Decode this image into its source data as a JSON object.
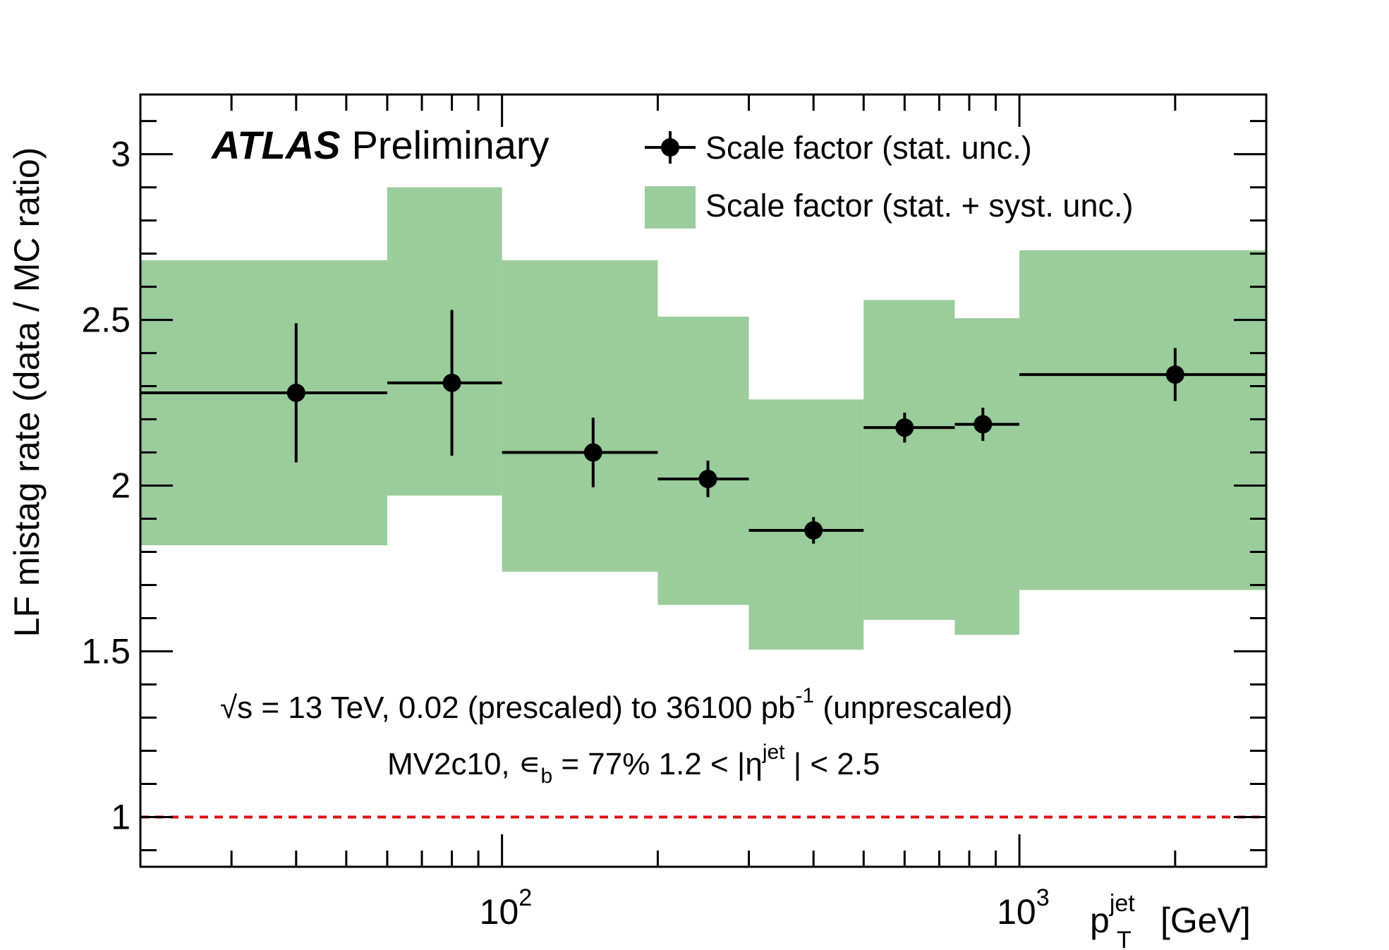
{
  "chart_data": {
    "type": "scatter",
    "experiment_label": "ATLAS",
    "experiment_status": "Preliminary",
    "ylabel": "LF mistag rate (data / MC ratio)",
    "xlabel_main": "p",
    "xlabel_sub": "T",
    "xlabel_sup": "jet",
    "xlabel_unit": "[GeV]",
    "x_scale": "log",
    "xlim": [
      20,
      3000
    ],
    "ylim": [
      0.85,
      3.18
    ],
    "x_tick_labels": [
      {
        "value": 100,
        "base": "10",
        "exp": "2"
      },
      {
        "value": 1000,
        "base": "10",
        "exp": "3"
      }
    ],
    "y_tick_labels": [
      {
        "value": 1,
        "label": "1"
      },
      {
        "value": 1.5,
        "label": "1.5"
      },
      {
        "value": 2,
        "label": "2"
      },
      {
        "value": 2.5,
        "label": "2.5"
      },
      {
        "value": 3,
        "label": "3"
      }
    ],
    "reference_line": {
      "y": 1,
      "color": "#dd1111"
    },
    "legend": {
      "position": "top-right",
      "stat_label": "Scale factor (stat. unc.)",
      "syst_label": "Scale factor  (stat. + syst. unc.)"
    },
    "annotations": {
      "line1_sqrt": "√s",
      "line1_a": " = 13 TeV, 0.02 (prescaled) to 36100 pb",
      "line1_sup": "-1",
      "line1_b": " (unprescaled)",
      "line2_a": "MV2c10, ",
      "line2_eps": "∊",
      "line2_eps_sub": "b",
      "line2_b": " = 77%    1.2 < |η",
      "line2_sup": "jet",
      "line2_c": " | < 2.5"
    },
    "colors": {
      "band": "#9bcc9b",
      "points": "#000000",
      "reference": "#dd1111"
    },
    "series": [
      {
        "name": "Scale factor (stat. unc.)",
        "points": [
          {
            "x": 40,
            "xlo": 20,
            "xhi": 60,
            "y": 2.28,
            "stat": 0.21,
            "syst_lo": 1.82,
            "syst_hi": 2.68
          },
          {
            "x": 80,
            "xlo": 60,
            "xhi": 100,
            "y": 2.31,
            "stat": 0.22,
            "syst_lo": 1.97,
            "syst_hi": 2.9
          },
          {
            "x": 150,
            "xlo": 100,
            "xhi": 200,
            "y": 2.1,
            "stat": 0.105,
            "syst_lo": 1.74,
            "syst_hi": 2.68
          },
          {
            "x": 250,
            "xlo": 200,
            "xhi": 300,
            "y": 2.02,
            "stat": 0.055,
            "syst_lo": 1.64,
            "syst_hi": 2.51
          },
          {
            "x": 400,
            "xlo": 300,
            "xhi": 500,
            "y": 1.865,
            "stat": 0.04,
            "syst_lo": 1.505,
            "syst_hi": 2.26
          },
          {
            "x": 600,
            "xlo": 500,
            "xhi": 750,
            "y": 2.175,
            "stat": 0.045,
            "syst_lo": 1.595,
            "syst_hi": 2.56
          },
          {
            "x": 850,
            "xlo": 750,
            "xhi": 1000,
            "y": 2.185,
            "stat": 0.05,
            "syst_lo": 1.55,
            "syst_hi": 2.505
          },
          {
            "x": 2000,
            "xlo": 1000,
            "xhi": 3000,
            "y": 2.335,
            "stat": 0.08,
            "syst_lo": 1.685,
            "syst_hi": 2.71
          }
        ]
      }
    ]
  }
}
